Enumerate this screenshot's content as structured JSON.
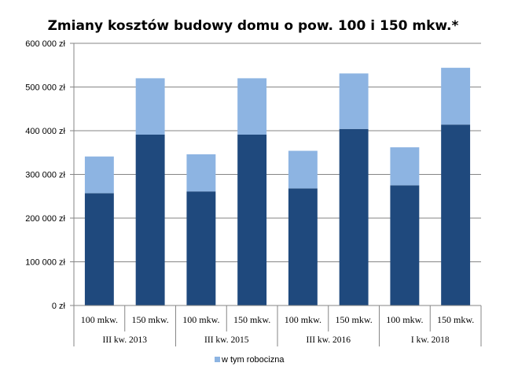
{
  "chart_data": {
    "type": "bar",
    "stacked": true,
    "title": "Zmiany kosztów budowy domu o pow. 100 i 150 mkw.*",
    "xlabel": "",
    "ylabel": "",
    "ylim": [
      0,
      600000
    ],
    "y_ticks": [
      0,
      100000,
      200000,
      300000,
      400000,
      500000,
      600000
    ],
    "y_tick_labels": [
      "0 zł",
      "100 000 zł",
      "200 000 zł",
      "300 000 zł",
      "400 000 zł",
      "500 000 zł",
      "600 000 zł"
    ],
    "grid": true,
    "legend_position": "bottom",
    "categories": [
      "100 mkw.",
      "150 mkw.",
      "100 mkw.",
      "150 mkw.",
      "100 mkw.",
      "150 mkw.",
      "100 mkw.",
      "150 mkw."
    ],
    "groups": [
      {
        "label": "III kw. 2013",
        "span": 2
      },
      {
        "label": "III kw. 2015",
        "span": 2
      },
      {
        "label": "III kw. 2016",
        "span": 2
      },
      {
        "label": "I kw. 2018",
        "span": 2
      }
    ],
    "series": [
      {
        "name": "",
        "color": "#1F497D",
        "values": [
          257000,
          391000,
          261000,
          391000,
          268000,
          404000,
          275000,
          414000
        ],
        "in_legend": false
      },
      {
        "name": "w tym robocizna",
        "color": "#8DB4E2",
        "values": [
          84000,
          129000,
          85000,
          129000,
          86000,
          127000,
          87000,
          130000
        ],
        "in_legend": true
      }
    ],
    "axis_color": "#868686",
    "grid_color": "#868686"
  }
}
